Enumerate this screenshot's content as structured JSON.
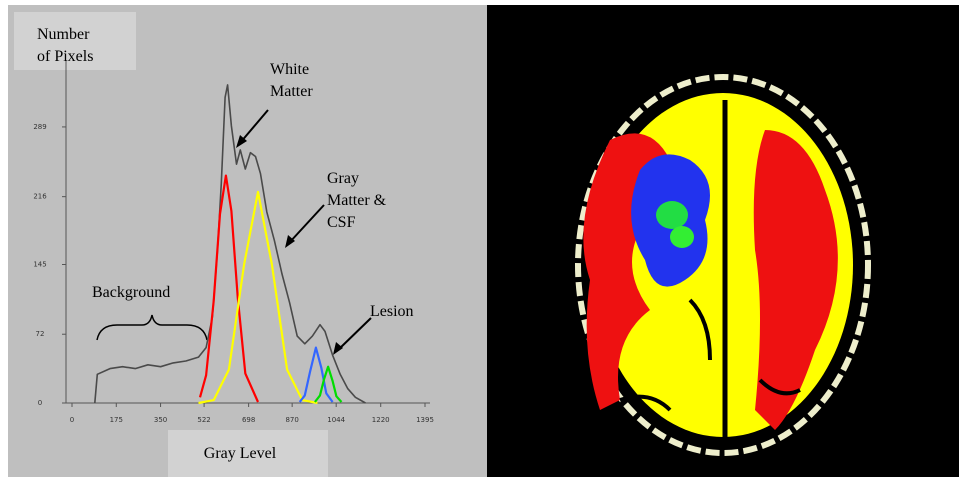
{
  "chart_data": {
    "type": "line",
    "ylabel": [
      "Number",
      "of Pixels"
    ],
    "xlabel": "Gray Level",
    "xlim": [
      0,
      1395
    ],
    "xticks": [
      0,
      175,
      350,
      522,
      698,
      870,
      1044,
      1220,
      1395
    ],
    "ylim": [
      0,
      380
    ],
    "yticks": [
      0,
      72,
      145,
      216,
      289
    ],
    "series": [
      {
        "color": "#4a4a4a",
        "x": [
          90,
          100,
          150,
          200,
          250,
          300,
          350,
          400,
          450,
          500,
          530,
          555,
          575,
          590,
          605,
          615,
          630,
          650,
          665,
          685,
          705,
          725,
          745,
          770,
          800,
          830,
          860,
          890,
          920,
          950,
          980,
          1000,
          1030,
          1060,
          1090,
          1120,
          1160
        ],
        "values": [
          0,
          30,
          36,
          38,
          36,
          40,
          38,
          42,
          44,
          48,
          58,
          90,
          160,
          230,
          320,
          333,
          290,
          250,
          265,
          245,
          262,
          258,
          240,
          200,
          170,
          135,
          105,
          70,
          62,
          70,
          82,
          75,
          50,
          30,
          15,
          6,
          0
        ]
      },
      {
        "color": "#ff0000",
        "x": [
          506,
          530,
          560,
          585,
          608,
          630,
          655,
          685,
          735
        ],
        "values": [
          6,
          29,
          107,
          198,
          238,
          201,
          111,
          31,
          1
        ]
      },
      {
        "color": "#ffff00",
        "x": [
          500,
          560,
          620,
          680,
          735,
          790,
          850,
          910,
          970
        ],
        "values": [
          0,
          3,
          35,
          145,
          221,
          145,
          35,
          3,
          0
        ]
      },
      {
        "color": "#3366ff",
        "x": [
          900,
          920,
          940,
          964,
          985,
          1005,
          1030
        ],
        "values": [
          1,
          8,
          32,
          58,
          37,
          10,
          1
        ]
      },
      {
        "color": "#00dd00",
        "x": [
          960,
          980,
          995,
          1012,
          1030,
          1045,
          1065
        ],
        "values": [
          1,
          8,
          24,
          38,
          23,
          7,
          1
        ]
      }
    ],
    "annotations": [
      {
        "lines": [
          "White",
          "Matter"
        ]
      },
      {
        "lines": [
          "Gray",
          "Matter &",
          "CSF"
        ]
      },
      {
        "lines": [
          "Background"
        ]
      },
      {
        "lines": [
          "Lesion"
        ]
      }
    ]
  }
}
